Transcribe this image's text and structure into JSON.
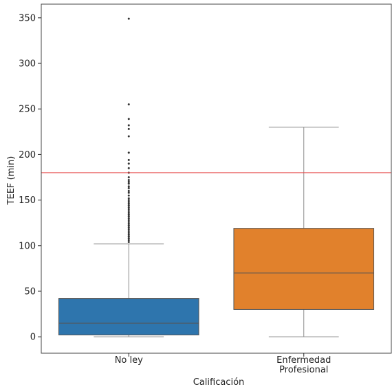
{
  "chart_data": {
    "type": "box",
    "xlabel": "Calificación",
    "ylabel": "TEEF (min)",
    "ylim": [
      -18,
      365
    ],
    "yticks": [
      0,
      50,
      100,
      150,
      200,
      250,
      300,
      350
    ],
    "categories": [
      {
        "label_lines": [
          "No ley"
        ],
        "name": "No ley"
      },
      {
        "label_lines": [
          "Enfermedad",
          "Profesional"
        ],
        "name": "Enfermedad Profesional"
      }
    ],
    "boxes": [
      {
        "category": "No ley",
        "color": "#2e75ad",
        "whisker_low": 0,
        "q1": 2,
        "median": 15,
        "q3": 42,
        "whisker_high": 102,
        "outliers": [
          104,
          106,
          108,
          110,
          112,
          114,
          116,
          118,
          120,
          122,
          124,
          126,
          128,
          130,
          132,
          134,
          136,
          138,
          140,
          142,
          144,
          146,
          148,
          150,
          152,
          155,
          158,
          160,
          163,
          165,
          168,
          170,
          172,
          175,
          180,
          185,
          190,
          194,
          202,
          220,
          228,
          232,
          239,
          255,
          349
        ]
      },
      {
        "category": "Enfermedad Profesional",
        "color": "#e1812c",
        "whisker_low": 0,
        "q1": 30,
        "median": 70,
        "q3": 119,
        "whisker_high": 230,
        "outliers": []
      }
    ],
    "reference_line": {
      "y": 180,
      "color": "#e84a4a"
    },
    "grid": false
  }
}
